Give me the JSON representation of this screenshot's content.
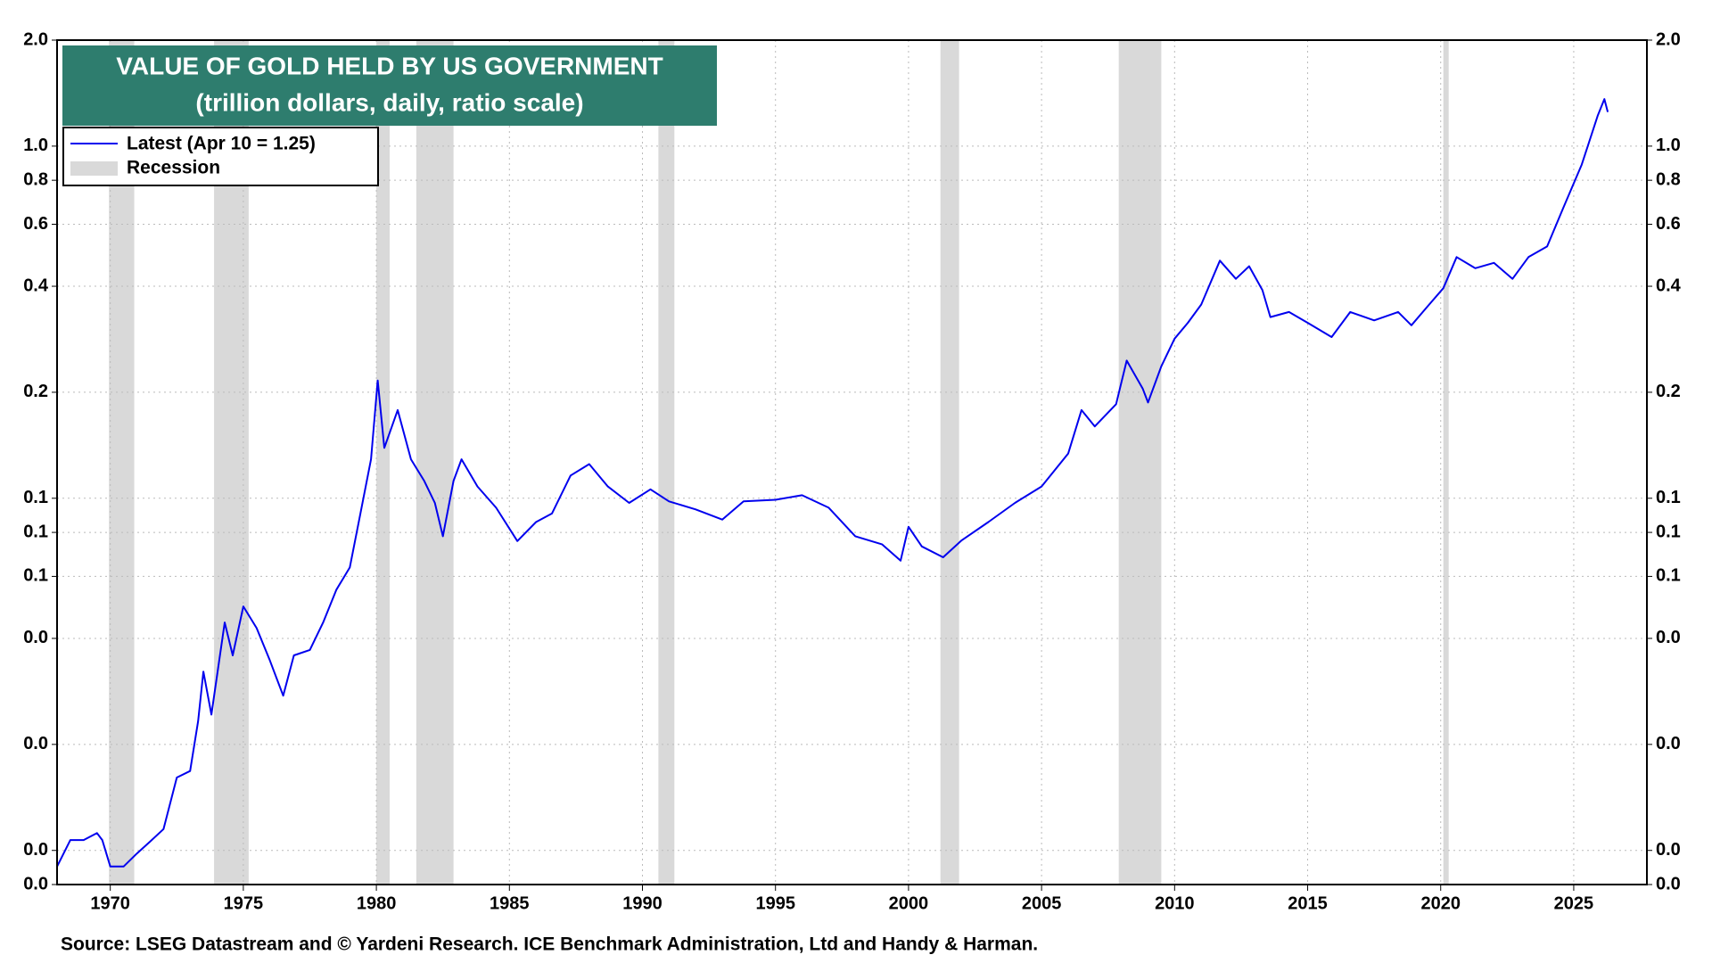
{
  "chart_data": {
    "type": "line",
    "title": "VALUE OF GOLD HELD BY US GOVERNMENT",
    "subtitle": "(trillion dollars, daily, ratio scale)",
    "source": "Source: LSEG Datastream and © Yardeni Research. ICE Benchmark Administration, Ltd and Handy & Harman.",
    "log_scale": true,
    "grid": true,
    "legend": "upper left",
    "title_box_color": "#2e7d6e",
    "xlim": [
      1968.0,
      2027.75
    ],
    "xticks": [
      1970,
      1975,
      1980,
      1985,
      1990,
      1995,
      2000,
      2005,
      2010,
      2015,
      2020,
      2025
    ],
    "ylim": [
      0.008,
      2.0
    ],
    "yticks": [
      {
        "value": 2,
        "label": "2.0"
      },
      {
        "value": 1,
        "label": "1.0"
      },
      0.8,
      0.6,
      0.4,
      0.2,
      0.1,
      {
        "value": 0.08,
        "label": "0.1"
      },
      {
        "value": 0.06,
        "label": "0.1"
      },
      {
        "value": 0.04,
        "label": "0.0"
      },
      {
        "value": 0.02,
        "label": "0.0"
      },
      {
        "value": 0.01,
        "label": "0.0"
      },
      {
        "value": 0.008,
        "label": "0.0"
      }
    ],
    "recession": {
      "name": "Recession",
      "color": "#d9d9d9",
      "spans": [
        [
          1969.95,
          1970.9
        ],
        [
          1973.9,
          1975.2
        ],
        [
          1980.0,
          1980.5
        ],
        [
          1981.5,
          1982.9
        ],
        [
          1990.6,
          1991.2
        ],
        [
          2001.2,
          2001.9
        ],
        [
          2007.9,
          2009.5
        ],
        [
          2020.1,
          2020.3
        ]
      ]
    },
    "series": [
      {
        "name": "Latest (Apr 10 = 1.25)",
        "color": "#0000ee",
        "x": [
          1968.0,
          1968.5,
          1969.0,
          1969.5,
          1969.7,
          1970.0,
          1970.5,
          1971.0,
          1971.5,
          1972.0,
          1972.5,
          1973.0,
          1973.3,
          1973.5,
          1973.8,
          1974.3,
          1974.6,
          1975.0,
          1975.5,
          1976.0,
          1976.5,
          1976.9,
          1977.5,
          1978.0,
          1978.5,
          1979.0,
          1979.4,
          1979.8,
          1980.05,
          1980.3,
          1980.8,
          1981.3,
          1981.8,
          1982.2,
          1982.5,
          1982.9,
          1983.2,
          1983.8,
          1984.5,
          1985.3,
          1986.0,
          1986.6,
          1987.3,
          1988.0,
          1988.7,
          1989.5,
          1990.3,
          1991.0,
          1992.0,
          1993.0,
          1993.8,
          1995.0,
          1996.0,
          1997.0,
          1998.0,
          1999.0,
          1999.7,
          2000.0,
          2000.5,
          2001.3,
          2002.0,
          2003.0,
          2004.0,
          2005.0,
          2006.0,
          2006.5,
          2007.0,
          2007.8,
          2008.2,
          2008.8,
          2009.0,
          2009.5,
          2010.0,
          2010.5,
          2011.0,
          2011.7,
          2012.3,
          2012.8,
          2013.3,
          2013.6,
          2014.3,
          2015.0,
          2015.9,
          2016.6,
          2017.5,
          2018.4,
          2018.9,
          2019.5,
          2020.1,
          2020.6,
          2021.3,
          2022.0,
          2022.7,
          2023.3,
          2024.0,
          2024.6,
          2025.3,
          2025.9,
          2026.15,
          2026.28
        ],
        "values": [
          0.009,
          0.0107,
          0.0107,
          0.0112,
          0.0107,
          0.009,
          0.009,
          0.0098,
          0.0106,
          0.0115,
          0.0161,
          0.0168,
          0.0233,
          0.0322,
          0.0243,
          0.0444,
          0.0358,
          0.0493,
          0.0428,
          0.0346,
          0.0275,
          0.0358,
          0.0371,
          0.0444,
          0.055,
          0.0636,
          0.0905,
          0.129,
          0.216,
          0.139,
          0.178,
          0.129,
          0.112,
          0.097,
          0.078,
          0.112,
          0.129,
          0.108,
          0.094,
          0.0756,
          0.0856,
          0.0905,
          0.116,
          0.125,
          0.108,
          0.097,
          0.106,
          0.098,
          0.093,
          0.087,
          0.098,
          0.099,
          0.102,
          0.094,
          0.078,
          0.074,
          0.0665,
          0.083,
          0.073,
          0.068,
          0.076,
          0.0856,
          0.097,
          0.108,
          0.134,
          0.178,
          0.16,
          0.185,
          0.246,
          0.205,
          0.187,
          0.237,
          0.284,
          0.315,
          0.355,
          0.473,
          0.42,
          0.456,
          0.39,
          0.327,
          0.338,
          0.315,
          0.287,
          0.338,
          0.32,
          0.338,
          0.31,
          0.35,
          0.395,
          0.484,
          0.45,
          0.466,
          0.42,
          0.484,
          0.519,
          0.666,
          0.886,
          1.22,
          1.36,
          1.25
        ]
      }
    ]
  }
}
